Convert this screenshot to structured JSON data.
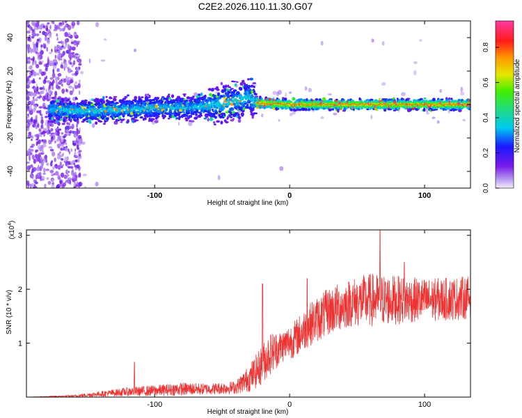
{
  "title": "C2E2.2026.110.11.30.G07",
  "chart_data": [
    {
      "type": "heatmap",
      "name": "spectrogram",
      "xlabel": "Height of straight line (km)",
      "ylabel": "Frequency (Hz)",
      "xlim": [
        -195,
        134
      ],
      "ylim": [
        -50,
        50
      ],
      "xticks": [
        -100,
        0,
        100
      ],
      "xtick_labels": [
        "-100",
        "0",
        "100"
      ],
      "yticks": [
        -40,
        -20,
        0,
        20,
        40
      ],
      "ytick_labels": [
        "-40",
        "-20",
        "0",
        "20",
        "40"
      ],
      "track": {
        "x": [
          -175,
          -150,
          -125,
          -100,
          -75,
          -55,
          -45,
          -35,
          -30,
          -25,
          0,
          50,
          100,
          134
        ],
        "frequency": [
          -3,
          -4,
          -3,
          -2,
          -2,
          0,
          1,
          3,
          5,
          1,
          0,
          0,
          0,
          0
        ]
      },
      "noise_region_x": [
        -195,
        -155
      ],
      "colorbar": {
        "label": "Normalized spectral amplitude",
        "range": [
          0,
          0.95
        ],
        "ticks": [
          0,
          0.2,
          0.4,
          0.6,
          0.8
        ],
        "tick_labels": [
          "0.0",
          "0.2",
          "0.4",
          "0.6",
          "0.8"
        ]
      }
    },
    {
      "type": "line",
      "name": "snr",
      "xlabel": "Height of straight line (km)",
      "ylabel": "SNR (10 * v/v)",
      "scale_label": "(x10",
      "scale_exponent": "4",
      "scale_suffix": ")",
      "xlim": [
        -195,
        134
      ],
      "ylim": [
        0,
        3.1
      ],
      "xticks": [
        -100,
        0,
        100
      ],
      "xtick_labels": [
        "-100",
        "0",
        "100"
      ],
      "yticks": [
        1,
        2,
        3
      ],
      "ytick_labels": [
        "1",
        "2",
        "3"
      ],
      "color": "#ee3333",
      "envelope": {
        "x": [
          -195,
          -160,
          -140,
          -120,
          -100,
          -80,
          -60,
          -40,
          -30,
          -22,
          -15,
          -5,
          5,
          15,
          30,
          45,
          60,
          80,
          100,
          120,
          134
        ],
        "mean": [
          0.0,
          0.02,
          0.06,
          0.1,
          0.12,
          0.15,
          0.15,
          0.18,
          0.35,
          0.55,
          0.8,
          0.95,
          1.1,
          1.35,
          1.6,
          1.75,
          1.8,
          1.8,
          1.8,
          1.82,
          1.85
        ],
        "spread": [
          0.0,
          0.02,
          0.05,
          0.08,
          0.1,
          0.12,
          0.1,
          0.12,
          0.25,
          0.35,
          0.4,
          0.3,
          0.35,
          0.4,
          0.45,
          0.45,
          0.5,
          0.45,
          0.4,
          0.4,
          0.4
        ]
      },
      "peaks": [
        {
          "x": -115,
          "y": 0.65
        },
        {
          "x": -20,
          "y": 2.1
        },
        {
          "x": 13,
          "y": 2.2
        },
        {
          "x": 67,
          "y": 3.1
        },
        {
          "x": 85,
          "y": 2.5
        }
      ]
    }
  ]
}
